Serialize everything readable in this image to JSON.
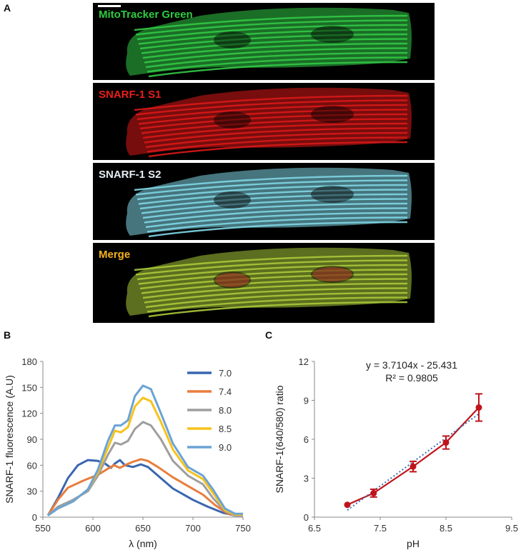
{
  "panel_a": {
    "letter": "A",
    "images": [
      {
        "label": "MitoTracker Green",
        "label_color": "#2ecc40",
        "tint": "#32c846"
      },
      {
        "label": "SNARF-1 S1",
        "label_color": "#e8201a",
        "tint": "#d81818"
      },
      {
        "label": "SNARF-1 S2",
        "label_color": "#e6eef2",
        "tint": "#7fd6e4"
      },
      {
        "label": "Merge",
        "label_color": "#f5b31b",
        "tint": "#a8c838"
      }
    ]
  },
  "chart_data": [
    {
      "panel": "B",
      "type": "line",
      "xlabel": "λ (nm)",
      "ylabel": "SNARF-1 fluorescence (A.U)",
      "xlim": [
        550,
        750
      ],
      "ylim": [
        0,
        180
      ],
      "xticks": [
        "550",
        "600",
        "650",
        "700",
        "750"
      ],
      "yticks": [
        "0",
        "30",
        "60",
        "90",
        "120",
        "150",
        "180"
      ],
      "legend_position": "right",
      "series": [
        {
          "name": "7.0",
          "color": "#3a66b0",
          "points": [
            [
              555,
              2
            ],
            [
              565,
              22
            ],
            [
              575,
              45
            ],
            [
              585,
              60
            ],
            [
              595,
              66
            ],
            [
              605,
              65
            ],
            [
              612,
              62
            ],
            [
              618,
              57
            ],
            [
              622,
              62
            ],
            [
              627,
              66
            ],
            [
              632,
              60
            ],
            [
              640,
              58
            ],
            [
              648,
              61
            ],
            [
              655,
              58
            ],
            [
              665,
              48
            ],
            [
              680,
              33
            ],
            [
              700,
              20
            ],
            [
              715,
              12
            ],
            [
              730,
              5
            ],
            [
              742,
              2
            ],
            [
              750,
              2
            ]
          ]
        },
        {
          "name": "7.4",
          "color": "#e87d3c",
          "points": [
            [
              555,
              2
            ],
            [
              565,
              20
            ],
            [
              575,
              34
            ],
            [
              590,
              42
            ],
            [
              605,
              49
            ],
            [
              615,
              56
            ],
            [
              621,
              60
            ],
            [
              627,
              57
            ],
            [
              632,
              60
            ],
            [
              640,
              64
            ],
            [
              648,
              67
            ],
            [
              655,
              65
            ],
            [
              665,
              58
            ],
            [
              680,
              46
            ],
            [
              695,
              36
            ],
            [
              710,
              26
            ],
            [
              722,
              14
            ],
            [
              735,
              4
            ],
            [
              742,
              2
            ],
            [
              750,
              2
            ]
          ]
        },
        {
          "name": "8.0",
          "color": "#9e9e9e",
          "points": [
            [
              555,
              2
            ],
            [
              565,
              12
            ],
            [
              580,
              20
            ],
            [
              595,
              30
            ],
            [
              605,
              48
            ],
            [
              615,
              72
            ],
            [
              622,
              86
            ],
            [
              628,
              84
            ],
            [
              635,
              88
            ],
            [
              642,
              102
            ],
            [
              650,
              110
            ],
            [
              658,
              106
            ],
            [
              668,
              90
            ],
            [
              680,
              65
            ],
            [
              695,
              48
            ],
            [
              710,
              38
            ],
            [
              720,
              22
            ],
            [
              732,
              7
            ],
            [
              742,
              2
            ],
            [
              750,
              2
            ]
          ]
        },
        {
          "name": "8.5",
          "color": "#f7c21a",
          "points": [
            [
              555,
              2
            ],
            [
              565,
              10
            ],
            [
              580,
              18
            ],
            [
              595,
              32
            ],
            [
              605,
              52
            ],
            [
              615,
              80
            ],
            [
              622,
              100
            ],
            [
              628,
              98
            ],
            [
              635,
              104
            ],
            [
              642,
              128
            ],
            [
              650,
              138
            ],
            [
              658,
              134
            ],
            [
              668,
              110
            ],
            [
              680,
              78
            ],
            [
              695,
              54
            ],
            [
              710,
              44
            ],
            [
              720,
              28
            ],
            [
              732,
              8
            ],
            [
              742,
              3
            ],
            [
              750,
              3
            ]
          ]
        },
        {
          "name": "9.0",
          "color": "#6aa3d5",
          "points": [
            [
              555,
              2
            ],
            [
              565,
              10
            ],
            [
              580,
              18
            ],
            [
              595,
              32
            ],
            [
              605,
              55
            ],
            [
              615,
              88
            ],
            [
              622,
              106
            ],
            [
              628,
              106
            ],
            [
              635,
              112
            ],
            [
              642,
              140
            ],
            [
              650,
              152
            ],
            [
              658,
              148
            ],
            [
              668,
              120
            ],
            [
              680,
              85
            ],
            [
              695,
              58
            ],
            [
              710,
              48
            ],
            [
              720,
              32
            ],
            [
              732,
              10
            ],
            [
              742,
              4
            ],
            [
              750,
              4
            ]
          ]
        }
      ]
    },
    {
      "panel": "C",
      "type": "scatter",
      "xlabel": "pH",
      "ylabel": "SNARF-1(640/580) ratio",
      "xlim": [
        6.5,
        9.5
      ],
      "ylim": [
        0,
        12
      ],
      "xticks": [
        "6.5",
        "7.5",
        "8.5",
        "9.5"
      ],
      "yticks": [
        "0",
        "3",
        "6",
        "9",
        "12"
      ],
      "points": [
        {
          "x": 7.0,
          "y": 0.95,
          "err": 0.05
        },
        {
          "x": 7.4,
          "y": 1.85,
          "err": 0.3
        },
        {
          "x": 8.0,
          "y": 3.9,
          "err": 0.4
        },
        {
          "x": 8.5,
          "y": 5.75,
          "err": 0.5
        },
        {
          "x": 9.0,
          "y": 8.45,
          "err": 1.05
        }
      ],
      "series_color": "#c0141c",
      "trendline": {
        "slope": 3.7104,
        "intercept": -25.431,
        "color": "#3d6fb5",
        "x_range": [
          7.0,
          9.0
        ]
      },
      "equation": "y = 3.7104x - 25.431",
      "r_squared": "R² = 0.9805"
    }
  ],
  "labels": {
    "panel_b": "B",
    "panel_c": "C"
  }
}
